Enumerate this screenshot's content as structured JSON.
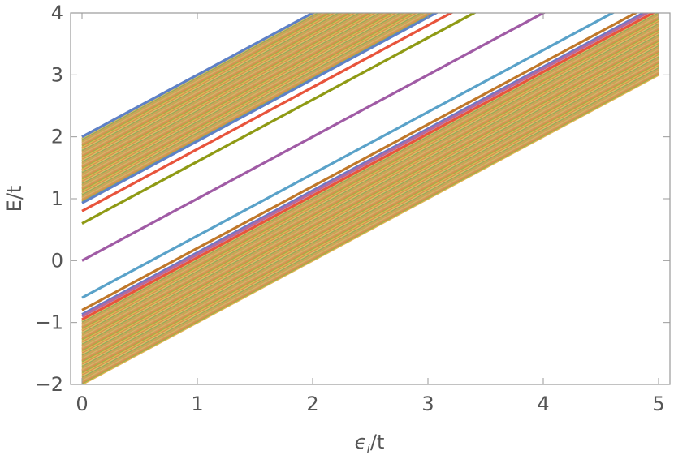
{
  "chart_data": {
    "type": "line",
    "title": "",
    "xlabel": {
      "main": "ϵ",
      "sub": "i",
      "rest": "/t"
    },
    "ylabel": "E/t",
    "xlim": [
      0,
      5
    ],
    "ylim": [
      -2,
      4
    ],
    "x_ticks": [
      0,
      1,
      2,
      3,
      4,
      5
    ],
    "y_ticks": [
      -2,
      -1,
      0,
      1,
      2,
      3,
      4
    ],
    "x_tick_labels": [
      "0",
      "1",
      "2",
      "3",
      "4",
      "5"
    ],
    "y_tick_labels": [
      "−2",
      "−1",
      "0",
      "1",
      "2",
      "3",
      "4"
    ],
    "grid": false,
    "line_slope": 1,
    "upper_band": {
      "y0_min": 0.95,
      "y0_max": 2.0,
      "count": 60
    },
    "lower_band": {
      "y0_min": -2.0,
      "y0_max": -0.95,
      "count": 60
    },
    "band_palette": [
      "#e6b255",
      "#9cb34a",
      "#dd8a4c",
      "#c9a45a",
      "#e3a96b",
      "#b9b254",
      "#d99a5b",
      "#8fae5a",
      "#e0bd6a",
      "#cf9450"
    ],
    "series": [
      {
        "y0": 2.0,
        "color": "#5e81c7"
      },
      {
        "y0": 0.93,
        "color": "#5e81c7"
      },
      {
        "y0": 0.8,
        "color": "#e8543c"
      },
      {
        "y0": 0.6,
        "color": "#8f9a14"
      },
      {
        "y0": 0.0,
        "color": "#a05ba5"
      },
      {
        "y0": -0.6,
        "color": "#5aa2c9"
      },
      {
        "y0": -0.8,
        "color": "#c0782a"
      },
      {
        "y0": -0.87,
        "color": "#6b78c8"
      },
      {
        "y0": -0.9,
        "color": "#b46a9e"
      },
      {
        "y0": -0.95,
        "color": "#e8543c"
      }
    ]
  }
}
